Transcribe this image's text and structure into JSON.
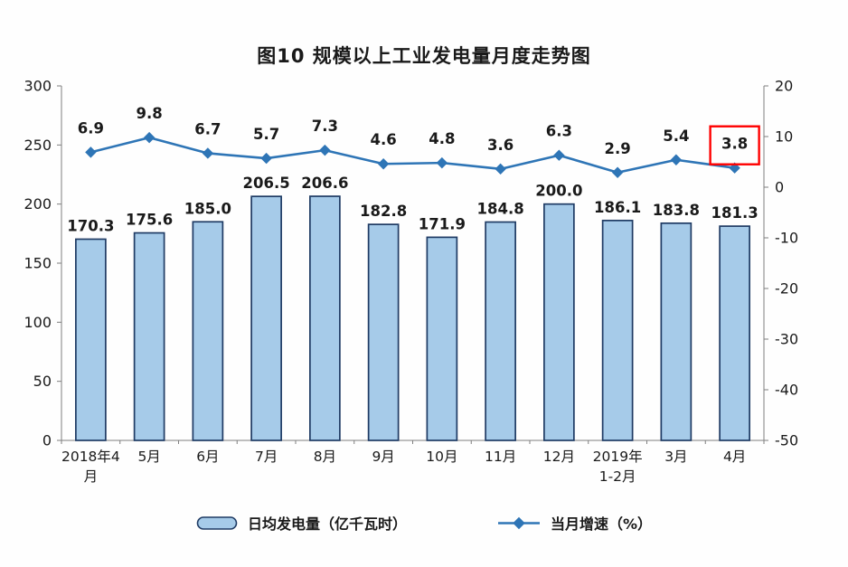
{
  "title": "图10 规模以上工业发电量月度走势图",
  "colors": {
    "background": "#FEFEFE",
    "bar_fill": "#A6CBE9",
    "bar_stroke": "#1F3B64",
    "line": "#2E75B6",
    "highlight_box": "#FF0000",
    "axis": "#7F7F7F",
    "text": "#1A1A1A"
  },
  "chart_data": {
    "type": "bar+line",
    "title": "图10 规模以上工业发电量月度走势图",
    "categories": [
      "2018年4月",
      "5月",
      "6月",
      "7月",
      "8月",
      "9月",
      "10月",
      "11月",
      "12月",
      "2019年1-2月",
      "3月",
      "4月"
    ],
    "category_label_lines": [
      [
        "2018年4",
        "月"
      ],
      [
        "5月"
      ],
      [
        "6月"
      ],
      [
        "7月"
      ],
      [
        "8月"
      ],
      [
        "9月"
      ],
      [
        "10月"
      ],
      [
        "11月"
      ],
      [
        "12月"
      ],
      [
        "2019年",
        "1-2月"
      ],
      [
        "3月"
      ],
      [
        "4月"
      ]
    ],
    "series": [
      {
        "name": "日均发电量（亿千瓦时）",
        "type": "bar",
        "axis": "left",
        "values": [
          170.3,
          175.6,
          185.0,
          206.5,
          206.6,
          182.8,
          171.9,
          184.8,
          200.0,
          186.1,
          183.8,
          181.3
        ]
      },
      {
        "name": "当月增速（%）",
        "type": "line",
        "axis": "right",
        "values": [
          6.9,
          9.8,
          6.7,
          5.7,
          7.3,
          4.6,
          4.8,
          3.6,
          6.3,
          2.9,
          5.4,
          3.8
        ]
      }
    ],
    "left_axis": {
      "min": 0,
      "max": 300,
      "ticks": [
        0,
        50,
        100,
        150,
        200,
        250,
        300
      ]
    },
    "right_axis": {
      "min": -50,
      "max": 20,
      "ticks": [
        -50,
        -40,
        -30,
        -20,
        -10,
        0,
        10,
        20
      ]
    },
    "grid": false,
    "legend_position": "bottom",
    "highlight": {
      "target": "last-line-value-label",
      "value": "3.8"
    }
  },
  "legend": {
    "bar_label": "日均发电量（亿千瓦时）",
    "line_label": "当月增速（%）"
  }
}
